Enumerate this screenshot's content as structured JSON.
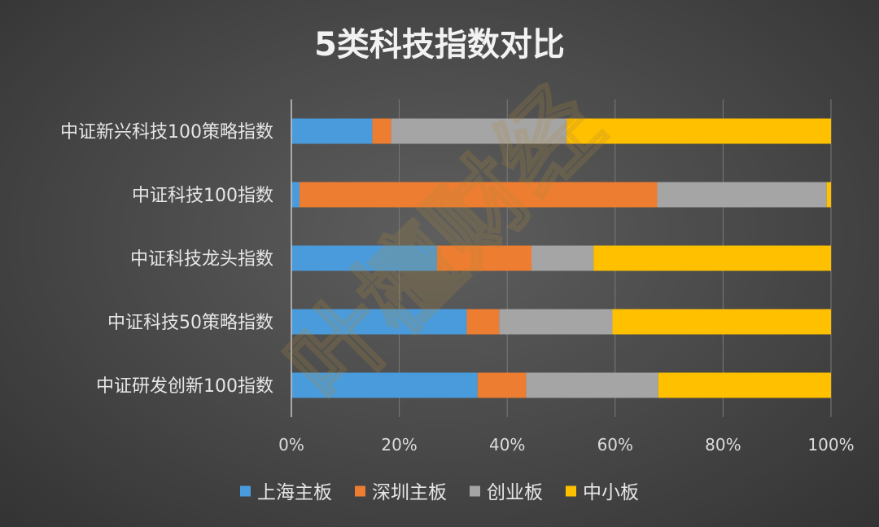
{
  "chart_data": {
    "type": "bar",
    "orientation": "horizontal",
    "stacked": "percent",
    "title": "5类科技指数对比",
    "categories": [
      "中证新兴科技100策略指数",
      "中证科技100指数",
      "中证科技龙头指数",
      "中证科技50策略指数",
      "中证研发创新100指数"
    ],
    "series": [
      {
        "name": "上海主板",
        "color": "#4a9bdc",
        "values": [
          15,
          1.5,
          27,
          32.5,
          34.5
        ]
      },
      {
        "name": "深圳主板",
        "color": "#ed7d31",
        "values": [
          3.5,
          66.3,
          17.5,
          6,
          9
        ]
      },
      {
        "name": "创业板",
        "color": "#a5a5a5",
        "values": [
          32.5,
          31.4,
          11.5,
          21,
          24.5
        ]
      },
      {
        "name": "中小板",
        "color": "#ffc000",
        "values": [
          49,
          0.8,
          44,
          40.5,
          32
        ]
      }
    ],
    "xlim": [
      0,
      100
    ],
    "x_ticks": [
      "0%",
      "20%",
      "40%",
      "60%",
      "80%",
      "100%"
    ],
    "grid": true,
    "legend_position": "bottom"
  },
  "watermark": {
    "text": "叶檀财经"
  }
}
